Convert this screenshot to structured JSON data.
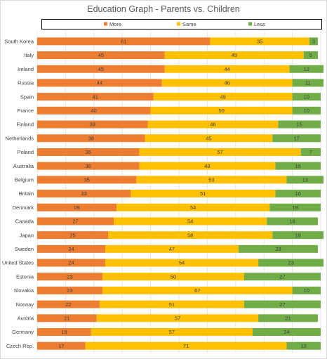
{
  "chart_data": {
    "type": "bar",
    "orientation": "horizontal",
    "stacked": true,
    "title": "Education Graph - Parents vs. Children",
    "legend_position": "top",
    "xlim": [
      0,
      100
    ],
    "grid": true,
    "categories": [
      "South Korea",
      "Italy",
      "Ireland",
      "Russia",
      "Spain",
      "France",
      "Finland",
      "Netherlands",
      "Poland",
      "Australia",
      "Belgium",
      "Britain",
      "Denmark",
      "Canada",
      "Japan",
      "Sweden",
      "United States",
      "Estonia",
      "Slovakia",
      "Norway",
      "Austria",
      "Germany",
      "Czech Rep."
    ],
    "series": [
      {
        "name": "More",
        "color": "#ED7D31",
        "values": [
          61,
          45,
          45,
          44,
          41,
          40,
          39,
          38,
          36,
          36,
          35,
          33,
          28,
          27,
          25,
          24,
          24,
          23,
          23,
          22,
          21,
          19,
          17
        ]
      },
      {
        "name": "Same",
        "color": "#FFC000",
        "values": [
          35,
          49,
          44,
          46,
          49,
          50,
          46,
          45,
          57,
          48,
          53,
          51,
          54,
          54,
          58,
          47,
          54,
          50,
          67,
          51,
          57,
          57,
          71
        ]
      },
      {
        "name": "Less",
        "color": "#70AD47",
        "values": [
          3,
          5,
          12,
          11,
          10,
          10,
          15,
          17,
          7,
          16,
          13,
          16,
          18,
          18,
          18,
          28,
          23,
          27,
          10,
          27,
          21,
          24,
          12
        ]
      }
    ]
  }
}
